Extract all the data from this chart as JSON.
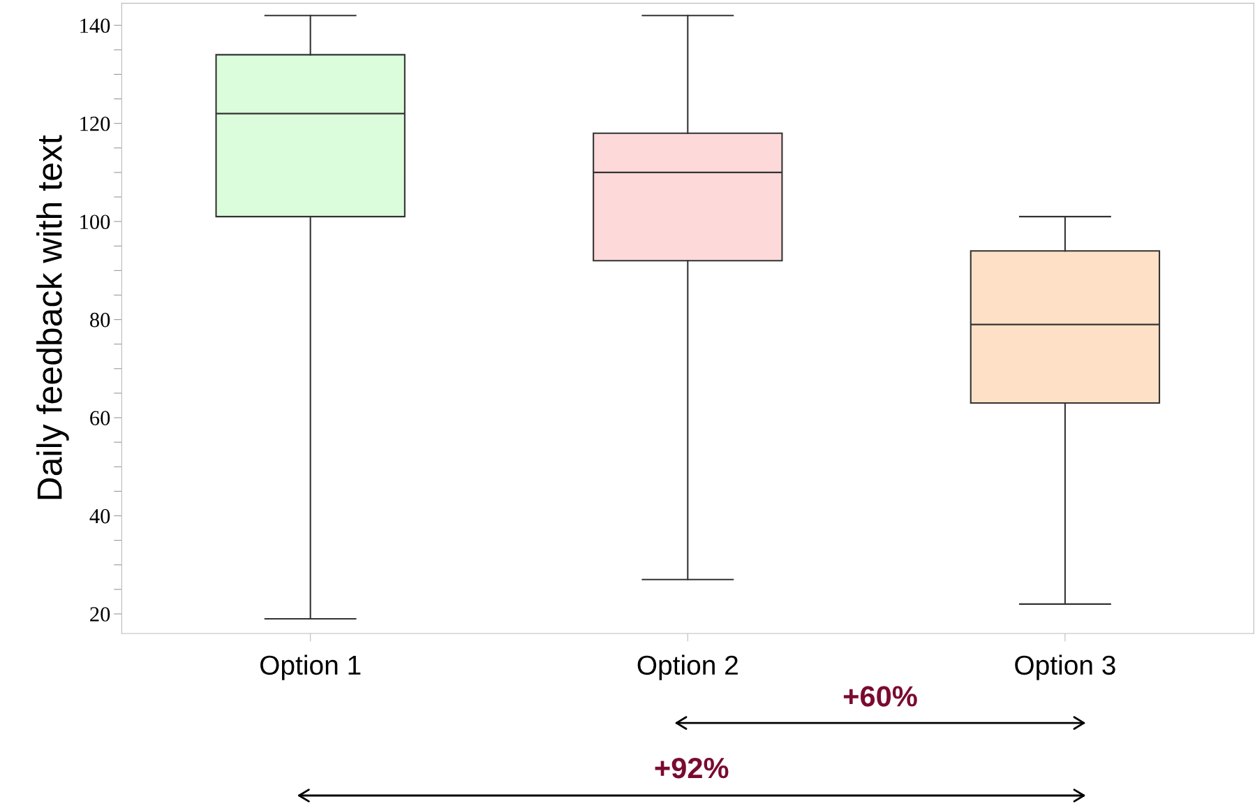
{
  "chart_data": {
    "type": "box",
    "ylabel": "Daily feedback with text",
    "categories": [
      "Option 1",
      "Option 2",
      "Option 3"
    ],
    "colors": [
      "#dbfddb",
      "#fdd9d9",
      "#fde0c5"
    ],
    "boxes": [
      {
        "low": 19,
        "q1": 101,
        "median": 122,
        "q3": 134,
        "high": 142
      },
      {
        "low": 27,
        "q1": 92,
        "median": 110,
        "q3": 118,
        "high": 142
      },
      {
        "low": 22,
        "q1": 63,
        "median": 79,
        "q3": 94,
        "high": 101
      }
    ],
    "ylim": [
      16,
      144.5
    ],
    "yticks": [
      20,
      {
        "value": 25,
        "label": null
      },
      {
        "value": 30,
        "label": null
      },
      {
        "value": 35,
        "label": null
      },
      40,
      {
        "value": 45,
        "label": null
      },
      {
        "value": 50,
        "label": null
      },
      {
        "value": 55,
        "label": null
      },
      60,
      {
        "value": 65,
        "label": null
      },
      {
        "value": 70,
        "label": null
      },
      {
        "value": 75,
        "label": null
      },
      80,
      {
        "value": 85,
        "label": null
      },
      {
        "value": 90,
        "label": null
      },
      {
        "value": 95,
        "label": null
      },
      100,
      {
        "value": 105,
        "label": null
      },
      {
        "value": 110,
        "label": null
      },
      {
        "value": 115,
        "label": null
      },
      120,
      {
        "value": 125,
        "label": null
      },
      {
        "value": 130,
        "label": null
      },
      {
        "value": 135,
        "label": null
      },
      140
    ],
    "grid": false,
    "annotations": [
      "+60%",
      "+92%"
    ]
  }
}
